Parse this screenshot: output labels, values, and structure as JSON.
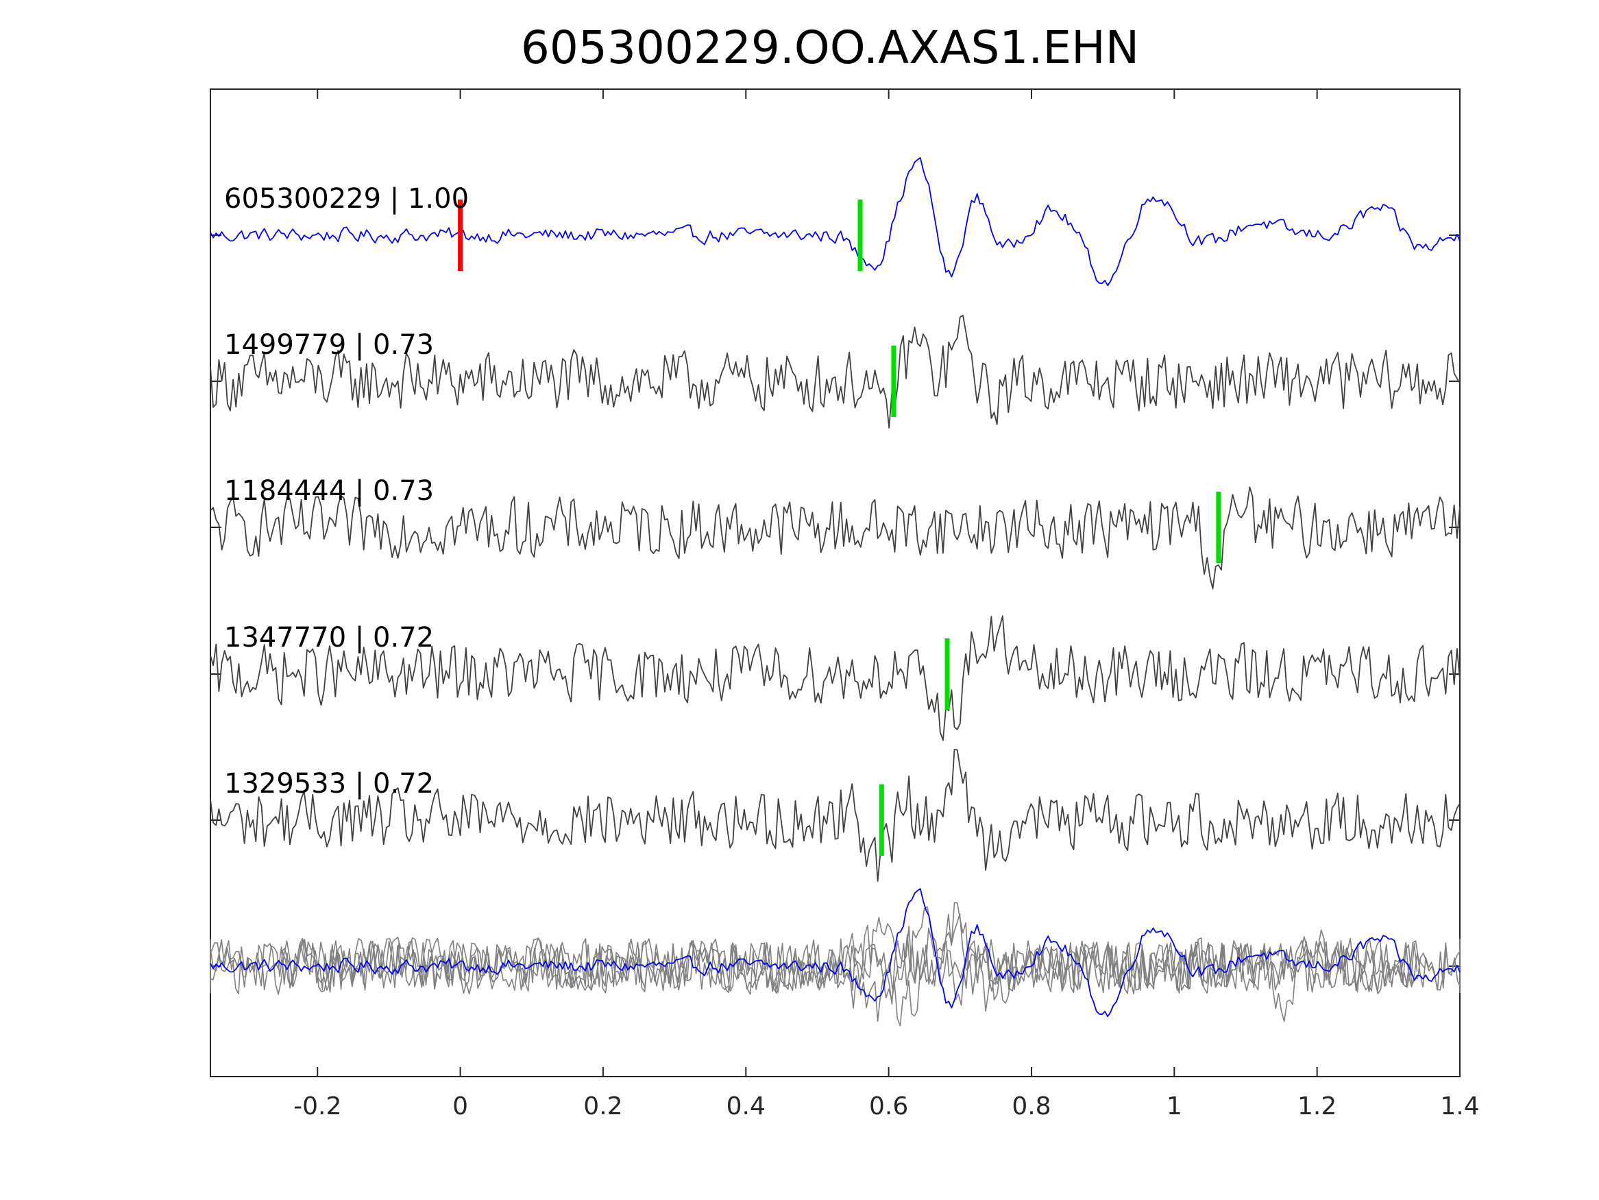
{
  "chart_data": {
    "type": "line",
    "title": "605300229.OO.AXAS1.EHN",
    "xlabel": "",
    "ylabel": "",
    "xlim": [
      -0.35,
      1.4
    ],
    "x_ticks": [
      -0.2,
      0,
      0.2,
      0.4,
      0.6,
      0.8,
      1,
      1.2,
      1.4
    ],
    "x_tick_labels": [
      "-0.2",
      "0",
      "0.2",
      "0.4",
      "0.6",
      "0.8",
      "1",
      "1.2",
      "1.4"
    ],
    "grid": false,
    "colors": {
      "template": "#0000ff",
      "neighbor": "#404040",
      "stack_neighbor": "#808080",
      "template_pick": "#ff0000",
      "pick": "#00dd00",
      "axis": "#262626"
    },
    "template_pick_time": 0.0,
    "traces": [
      {
        "label": "605300229 | 1.00",
        "color": "template",
        "pick": 0.56,
        "events": [
          {
            "t": 0.557,
            "a": -0.3,
            "w": 0.012
          },
          {
            "t": 0.585,
            "a": -0.55,
            "w": 0.014
          },
          {
            "t": 0.645,
            "a": 1.55,
            "w": 0.024
          },
          {
            "t": 0.685,
            "a": -1.4,
            "w": 0.02
          },
          {
            "t": 0.72,
            "a": 1.05,
            "w": 0.02
          },
          {
            "t": 0.755,
            "a": -0.4,
            "w": 0.02
          },
          {
            "t": 0.83,
            "a": 0.45,
            "w": 0.025
          },
          {
            "t": 0.905,
            "a": -0.95,
            "w": 0.022
          },
          {
            "t": 0.975,
            "a": 0.8,
            "w": 0.028
          },
          {
            "t": 1.04,
            "a": -0.2,
            "w": 0.03
          },
          {
            "t": 1.115,
            "a": 0.25,
            "w": 0.03
          },
          {
            "t": 1.29,
            "a": 0.55,
            "w": 0.03
          },
          {
            "t": 1.34,
            "a": -0.35,
            "w": 0.025
          }
        ]
      },
      {
        "label": "1499779 | 0.73",
        "color": "neighbor",
        "pick": 0.607,
        "events": [
          {
            "t": 0.595,
            "a": -0.7,
            "w": 0.012
          },
          {
            "t": 0.64,
            "a": 0.8,
            "w": 0.018
          },
          {
            "t": 0.67,
            "a": -0.45,
            "w": 0.015
          },
          {
            "t": 0.7,
            "a": 1.0,
            "w": 0.02
          },
          {
            "t": 0.735,
            "a": -0.45,
            "w": 0.02
          }
        ]
      },
      {
        "label": "1184444 | 0.73",
        "color": "neighbor",
        "pick": 1.062,
        "events": [
          {
            "t": 1.03,
            "a": 0.2,
            "w": 0.02
          },
          {
            "t": 1.058,
            "a": -0.95,
            "w": 0.014
          },
          {
            "t": 1.09,
            "a": 0.4,
            "w": 0.018
          }
        ]
      },
      {
        "label": "1347770 | 0.72",
        "color": "neighbor",
        "pick": 0.682,
        "events": [
          {
            "t": 0.66,
            "a": -0.5,
            "w": 0.012
          },
          {
            "t": 0.69,
            "a": -0.9,
            "w": 0.014
          },
          {
            "t": 0.715,
            "a": 0.55,
            "w": 0.015
          },
          {
            "t": 0.755,
            "a": 0.7,
            "w": 0.015
          }
        ]
      },
      {
        "label": "1329533 | 0.72",
        "color": "neighbor",
        "pick": 0.59,
        "events": [
          {
            "t": 0.545,
            "a": 0.25,
            "w": 0.015
          },
          {
            "t": 0.59,
            "a": -0.8,
            "w": 0.018
          },
          {
            "t": 0.625,
            "a": 0.55,
            "w": 0.016
          },
          {
            "t": 0.655,
            "a": -0.35,
            "w": 0.015
          },
          {
            "t": 0.695,
            "a": 0.95,
            "w": 0.022
          },
          {
            "t": 0.735,
            "a": -0.65,
            "w": 0.018
          }
        ]
      }
    ],
    "stack_shifts": [
      -0.05,
      0.1,
      -0.06,
      0.0
    ]
  }
}
